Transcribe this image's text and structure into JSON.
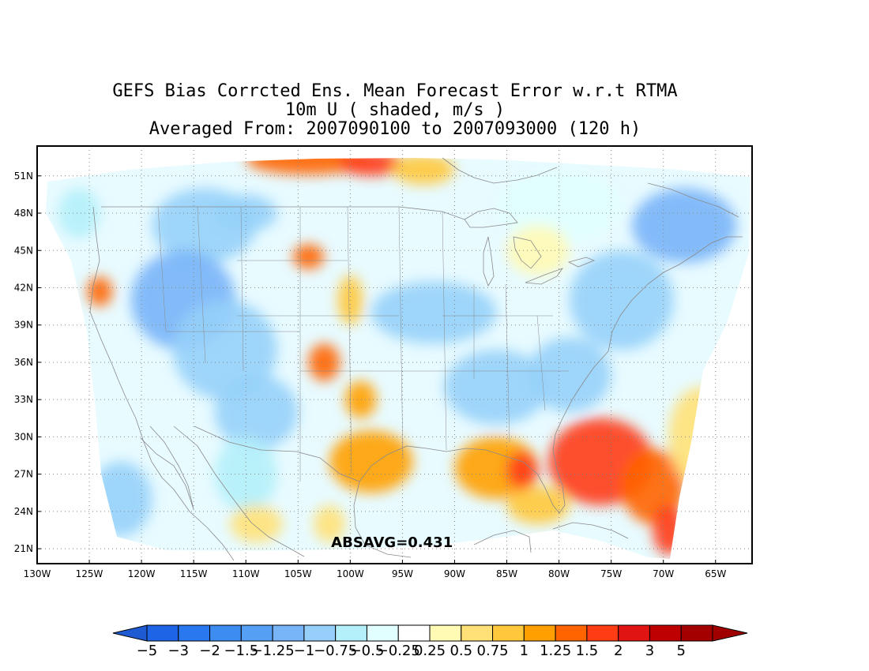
{
  "title": {
    "line1": "GEFS Bias Corrcted Ens. Mean Forecast Error w.r.t RTMA",
    "line2": "10m U ( shaded, m/s )",
    "line3": "Averaged From: 2007090100 to 2007093000 (120 h)"
  },
  "map": {
    "lon_range": [
      -130,
      -61.5
    ],
    "lat_range": [
      19.8,
      53.4
    ],
    "lon_ticks": [
      "130W",
      "125W",
      "120W",
      "115W",
      "110W",
      "105W",
      "100W",
      "95W",
      "90W",
      "85W",
      "80W",
      "75W",
      "70W",
      "65W"
    ],
    "lon_tick_values": [
      -130,
      -125,
      -120,
      -115,
      -110,
      -105,
      -100,
      -95,
      -90,
      -85,
      -80,
      -75,
      -70,
      -65
    ],
    "lat_ticks": [
      "21N",
      "24N",
      "27N",
      "30N",
      "33N",
      "36N",
      "39N",
      "42N",
      "45N",
      "48N",
      "51N"
    ],
    "lat_tick_values": [
      21,
      24,
      27,
      30,
      33,
      36,
      39,
      42,
      45,
      48,
      51
    ],
    "grid": "dotted",
    "annotation": "ABSAVG=0.431",
    "annotation_pos": {
      "lon": -96,
      "lat": 21.5
    }
  },
  "colorbar": {
    "labels": [
      "-5",
      "-3",
      "-2",
      "-1.5",
      "-1.25",
      "-1",
      "-0.75",
      "-0.5",
      "-0.25",
      "0.25",
      "0.5",
      "0.75",
      "1",
      "1.25",
      "1.5",
      "2",
      "3",
      "5"
    ],
    "colors": [
      "#1e64e6",
      "#2a78ef",
      "#3c8cf2",
      "#559ff5",
      "#78b4f8",
      "#96d0fa",
      "#b4f0fa",
      "#e1ffff",
      "#ffffff",
      "#fffab4",
      "#ffe178",
      "#ffc83c",
      "#ffa000",
      "#ff6400",
      "#ff3c14",
      "#e11414",
      "#be0000",
      "#a50000"
    ],
    "low_end_color": "#1e5ad2",
    "high_end_color": "#a00000"
  },
  "field_regions": [
    {
      "lon": -104,
      "lat": 52.3,
      "r": [
        6,
        1.2
      ],
      "v": 1.3
    },
    {
      "lon": -98,
      "lat": 52.0,
      "r": [
        3,
        1.0
      ],
      "v": 1.5
    },
    {
      "lon": -93,
      "lat": 51.5,
      "r": [
        3,
        1.2
      ],
      "v": 0.8
    },
    {
      "lon": -126,
      "lat": 48,
      "r": [
        2,
        2
      ],
      "v": -0.6
    },
    {
      "lon": -114,
      "lat": 47,
      "r": [
        5,
        3
      ],
      "v": -0.8
    },
    {
      "lon": -110,
      "lat": 48,
      "r": [
        3,
        1.5
      ],
      "v": -1.0
    },
    {
      "lon": -116,
      "lat": 41,
      "r": [
        5,
        4
      ],
      "v": -1.1
    },
    {
      "lon": -112,
      "lat": 37,
      "r": [
        5,
        4
      ],
      "v": -1.0
    },
    {
      "lon": -109,
      "lat": 32,
      "r": [
        4,
        3
      ],
      "v": -0.9
    },
    {
      "lon": -110,
      "lat": 27,
      "r": [
        3,
        3
      ],
      "v": -0.6
    },
    {
      "lon": -122,
      "lat": 25,
      "r": [
        3,
        3
      ],
      "v": -0.8
    },
    {
      "lon": -124,
      "lat": 41.7,
      "r": [
        1.2,
        1.2
      ],
      "v": 1.3
    },
    {
      "lon": -104,
      "lat": 44.5,
      "r": [
        1.5,
        1.0
      ],
      "v": 1.3
    },
    {
      "lon": -102.5,
      "lat": 36,
      "r": [
        1.5,
        1.5
      ],
      "v": 1.4
    },
    {
      "lon": -100,
      "lat": 41,
      "r": [
        1.2,
        2
      ],
      "v": 0.8
    },
    {
      "lon": -99,
      "lat": 33,
      "r": [
        1.5,
        1.5
      ],
      "v": 1.0
    },
    {
      "lon": -98,
      "lat": 28,
      "r": [
        4,
        2.5
      ],
      "v": 1.0
    },
    {
      "lon": -109,
      "lat": 23,
      "r": [
        2.5,
        1.5
      ],
      "v": 0.7
    },
    {
      "lon": -102,
      "lat": 23,
      "r": [
        1.5,
        1.5
      ],
      "v": 0.5
    },
    {
      "lon": -92,
      "lat": 40,
      "r": [
        6,
        2.5
      ],
      "v": -0.8
    },
    {
      "lon": -86,
      "lat": 34,
      "r": [
        5,
        3
      ],
      "v": -0.9
    },
    {
      "lon": -79,
      "lat": 35,
      "r": [
        4,
        3
      ],
      "v": -0.8
    },
    {
      "lon": -74,
      "lat": 41,
      "r": [
        5,
        4
      ],
      "v": -1.0
    },
    {
      "lon": -68,
      "lat": 47,
      "r": [
        5,
        3
      ],
      "v": -1.1
    },
    {
      "lon": -80,
      "lat": 48.5,
      "r": [
        6,
        3
      ],
      "v": -0.4
    },
    {
      "lon": -82,
      "lat": 45,
      "r": [
        3,
        2
      ],
      "v": 0.4
    },
    {
      "lon": -86,
      "lat": 27.5,
      "r": [
        4,
        2.5
      ],
      "v": 1.1
    },
    {
      "lon": -83.5,
      "lat": 27.3,
      "r": [
        1.5,
        1.5
      ],
      "v": 1.6
    },
    {
      "lon": -82,
      "lat": 24.5,
      "r": [
        3,
        1.5
      ],
      "v": 0.9
    },
    {
      "lon": -76,
      "lat": 28,
      "r": [
        5,
        3.5
      ],
      "v": 1.6
    },
    {
      "lon": -71,
      "lat": 26,
      "r": [
        3,
        3
      ],
      "v": 1.3
    },
    {
      "lon": -69.5,
      "lat": 22.5,
      "r": [
        1.5,
        2
      ],
      "v": 1.7
    },
    {
      "lon": -66.5,
      "lat": 30,
      "r": [
        3,
        4
      ],
      "v": 0.6
    }
  ]
}
